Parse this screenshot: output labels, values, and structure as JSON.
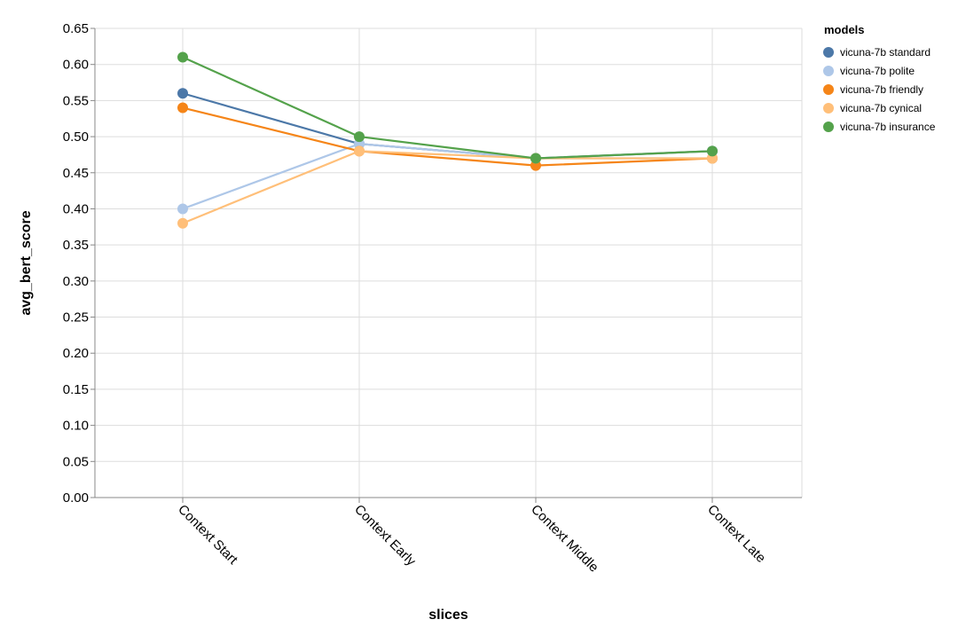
{
  "chart_data": {
    "type": "line",
    "title": "",
    "xlabel": "slices",
    "ylabel": "avg_bert_score",
    "categories": [
      "Context Start",
      "Context Early",
      "Context Middle",
      "Context Late"
    ],
    "ylim": [
      0,
      0.65
    ],
    "yticks": [
      "0.00",
      "0.05",
      "0.10",
      "0.15",
      "0.20",
      "0.25",
      "0.30",
      "0.35",
      "0.40",
      "0.45",
      "0.50",
      "0.55",
      "0.60",
      "0.65"
    ],
    "grid": true,
    "legend": {
      "title": "models",
      "position": "top-right"
    },
    "series": [
      {
        "name": "vicuna-7b standard",
        "color": "#4c78a8",
        "values": [
          0.56,
          0.49,
          0.47,
          0.48
        ]
      },
      {
        "name": "vicuna-7b polite",
        "color": "#aec7e8",
        "values": [
          0.4,
          0.49,
          0.47,
          0.47
        ]
      },
      {
        "name": "vicuna-7b friendly",
        "color": "#f58518",
        "values": [
          0.54,
          0.48,
          0.46,
          0.47
        ]
      },
      {
        "name": "vicuna-7b cynical",
        "color": "#ffbf79",
        "values": [
          0.38,
          0.48,
          0.47,
          0.47
        ]
      },
      {
        "name": "vicuna-7b insurance",
        "color": "#54a24b",
        "values": [
          0.61,
          0.5,
          0.47,
          0.48
        ]
      }
    ]
  }
}
